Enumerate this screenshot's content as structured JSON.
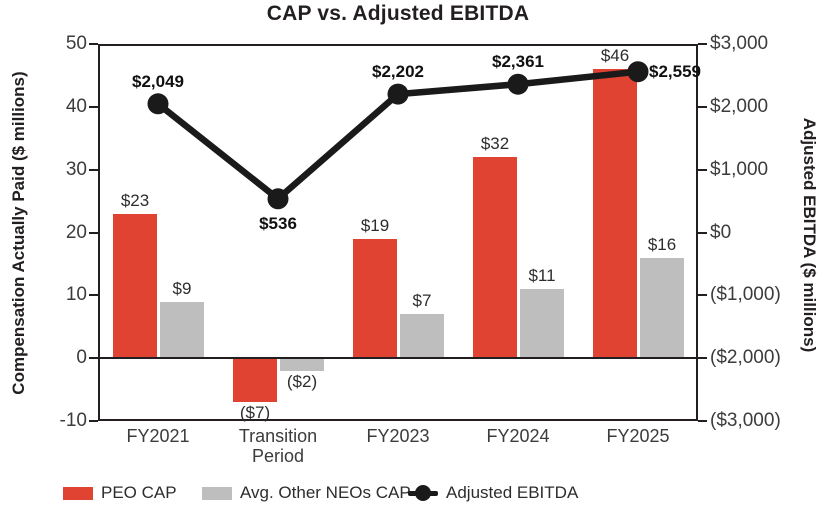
{
  "chart_data": {
    "type": "bar+line combo (dual axis)",
    "title": "CAP vs. Adjusted EBITDA",
    "categories": [
      "FY2021",
      "Transition\nPeriod",
      "FY2023",
      "FY2024",
      "FY2025"
    ],
    "left_axis": {
      "label": "Compensation Actually Paid ($ millions)",
      "min": -10,
      "max": 50,
      "tick_labels": [
        "50",
        "40",
        "30",
        "20",
        "10",
        "0",
        "-10"
      ],
      "tick_values": [
        50,
        40,
        30,
        20,
        10,
        0,
        -10
      ]
    },
    "right_axis": {
      "label": "Adjusted EBITDA ($ millions)",
      "min": -3000,
      "max": 3000,
      "tick_labels": [
        "$3,000",
        "$2,000",
        "$1,000",
        "$0",
        "($1,000)",
        "($2,000)",
        "($3,000)"
      ],
      "tick_values": [
        3000,
        2000,
        1000,
        0,
        -1000,
        -2000,
        -3000
      ]
    },
    "series": [
      {
        "name": "PEO CAP",
        "type": "bar",
        "axis": "left",
        "color": "#E04332",
        "values": [
          23,
          -7,
          19,
          32,
          46
        ],
        "labels": [
          "$23",
          "($7)",
          "$19",
          "$32",
          "$46"
        ]
      },
      {
        "name": "Avg. Other NEOs CAP",
        "type": "bar",
        "axis": "left",
        "color": "#BDBEBD",
        "values": [
          9,
          -2,
          7,
          11,
          16
        ],
        "labels": [
          "$9",
          "($2)",
          "$7",
          "$11",
          "$16"
        ]
      },
      {
        "name": "Adjusted EBITDA",
        "type": "line",
        "axis": "right",
        "color": "#1A1A1A",
        "values": [
          2049,
          536,
          2202,
          2361,
          2559
        ],
        "labels": [
          "$2,049",
          "$536",
          "$2,202",
          "$2,361",
          "$2,559"
        ],
        "label_positions": [
          "above",
          "below",
          "above",
          "above",
          "right"
        ]
      }
    ],
    "legend_position": "bottom",
    "grid": "off"
  }
}
